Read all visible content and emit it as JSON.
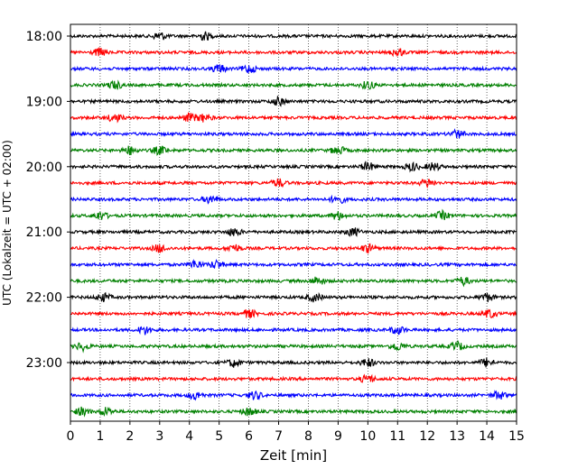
{
  "chart_data": {
    "type": "line",
    "title": "",
    "xlabel": "Zeit  [min]",
    "ylabel": "UTC (Lokalzeit = UTC + 02:00)",
    "xlim": [
      0,
      15
    ],
    "x_ticks": [
      "0",
      "1",
      "2",
      "3",
      "4",
      "5",
      "6",
      "7",
      "8",
      "9",
      "10",
      "11",
      "12",
      "13",
      "14",
      "15"
    ],
    "y_ticks": [
      "18:00",
      "19:00",
      "20:00",
      "21:00",
      "22:00",
      "23:00"
    ],
    "grid": "vertical dotted",
    "trace_colors": [
      "#000000",
      "#ff0000",
      "#0000ff",
      "#008000"
    ],
    "trace_interval_minutes": 15,
    "traces": [
      {
        "start": "18:00",
        "color": "#000000",
        "bursts": [
          3.0,
          4.5
        ]
      },
      {
        "start": "18:15",
        "color": "#ff0000",
        "bursts": [
          1.0,
          11.0
        ]
      },
      {
        "start": "18:30",
        "color": "#0000ff",
        "bursts": [
          5.0,
          6.0
        ]
      },
      {
        "start": "18:45",
        "color": "#008000",
        "bursts": [
          1.5,
          10.0
        ]
      },
      {
        "start": "19:00",
        "color": "#000000",
        "bursts": [
          7.0
        ]
      },
      {
        "start": "19:15",
        "color": "#ff0000",
        "bursts": [
          1.5,
          4.0,
          4.5
        ]
      },
      {
        "start": "19:30",
        "color": "#0000ff",
        "bursts": [
          13.0
        ]
      },
      {
        "start": "19:45",
        "color": "#008000",
        "bursts": [
          2.0,
          3.0,
          9.0
        ]
      },
      {
        "start": "20:00",
        "color": "#000000",
        "bursts": [
          10.0,
          11.5,
          12.2
        ]
      },
      {
        "start": "20:15",
        "color": "#ff0000",
        "bursts": [
          7.0,
          12.0
        ]
      },
      {
        "start": "20:30",
        "color": "#0000ff",
        "bursts": [
          4.7,
          9.0
        ]
      },
      {
        "start": "20:45",
        "color": "#008000",
        "bursts": [
          1.0,
          9.0,
          12.5
        ]
      },
      {
        "start": "21:00",
        "color": "#000000",
        "bursts": [
          5.5,
          9.5
        ]
      },
      {
        "start": "21:15",
        "color": "#ff0000",
        "bursts": [
          3.0,
          5.5,
          10.0
        ]
      },
      {
        "start": "21:30",
        "color": "#0000ff",
        "bursts": [
          4.2,
          4.9
        ]
      },
      {
        "start": "21:45",
        "color": "#008000",
        "bursts": [
          8.3,
          13.2
        ]
      },
      {
        "start": "22:00",
        "color": "#000000",
        "bursts": [
          1.1,
          8.2,
          14.0
        ]
      },
      {
        "start": "22:15",
        "color": "#ff0000",
        "bursts": [
          6.0,
          14.1
        ]
      },
      {
        "start": "22:30",
        "color": "#0000ff",
        "bursts": [
          2.5,
          11.0
        ]
      },
      {
        "start": "22:45",
        "color": "#008000",
        "bursts": [
          0.4,
          11.0,
          13.0
        ]
      },
      {
        "start": "23:00",
        "color": "#000000",
        "bursts": [
          5.5,
          10.0,
          14.0
        ]
      },
      {
        "start": "23:15",
        "color": "#ff0000",
        "bursts": [
          10.0
        ]
      },
      {
        "start": "23:30",
        "color": "#0000ff",
        "bursts": [
          4.2,
          6.2,
          14.4
        ]
      },
      {
        "start": "23:45",
        "color": "#008000",
        "bursts": [
          0.4,
          1.2,
          6.0
        ]
      }
    ]
  }
}
